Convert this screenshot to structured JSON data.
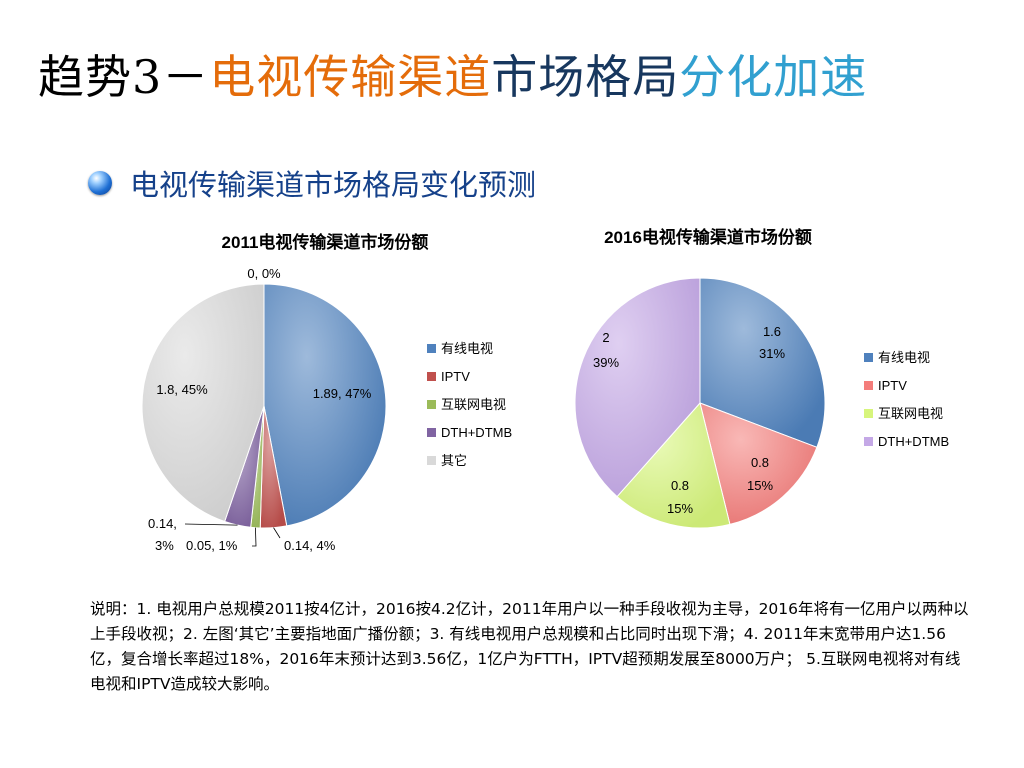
{
  "title": {
    "part1": "趋势3－",
    "part2": "电视传输渠道",
    "part3": "市场格局",
    "part4": "分化加速",
    "colors": {
      "part1": "#000000",
      "part2": "#e46c0a",
      "part3": "#17375e",
      "part4": "#31a0d0"
    }
  },
  "bullet": {
    "text": "电视传输渠道市场格局变化预测",
    "icon": "bullet-sphere-icon"
  },
  "chart_data": [
    {
      "type": "pie",
      "title": "2011电视传输渠道市场份额",
      "legend_position": "right",
      "categories": [
        "有线电视",
        "IPTV",
        "互联网电视",
        "DTH+DTMB",
        "其它"
      ],
      "values": [
        1.89,
        0.14,
        0.05,
        0.14,
        1.8
      ],
      "percents": [
        "47%",
        "4%",
        "1%",
        "3%",
        "45%"
      ],
      "data_labels": [
        "1.89, 47%",
        "0.14, 4%",
        "0.05, 1%",
        "0.14, 3%",
        "1.8, 45%"
      ],
      "zero_label": "0, 0%",
      "colors": [
        "#4f81bd",
        "#c0504d",
        "#9bbb59",
        "#8064a2",
        "#d9d9d9"
      ]
    },
    {
      "type": "pie",
      "title": "2016电视传输渠道市场份额",
      "legend_position": "right",
      "categories": [
        "有线电视",
        "IPTV",
        "互联网电视",
        "DTH+DTMB"
      ],
      "values": [
        1.6,
        0.8,
        0.8,
        2
      ],
      "percents": [
        "31%",
        "15%",
        "15%",
        "39%"
      ],
      "colors": [
        "#4f81bd",
        "#f47d7b",
        "#d7f57c",
        "#c4a8e6"
      ]
    }
  ],
  "note": {
    "text": "说明：1. 电视用户总规模2011按4亿计，2016按4.2亿计，2011年用户以一种手段收视为主导，2016年将有一亿用户以两种以上手段收视；2. 左图‘其它’主要指地面广播份额；3. 有线电视用户总规模和占比同时出现下滑；4. 2011年末宽带用户达1.56亿，复合增长率超过18%，2016年末预计达到3.56亿，1亿户为FTTH，IPTV超预期发展至8000万户； 5.互联网电视将对有线电视和IPTV造成较大影响。"
  }
}
